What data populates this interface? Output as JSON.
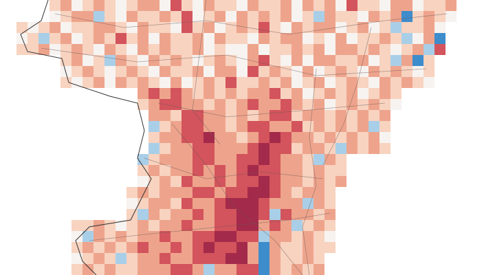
{
  "map": {
    "levels": [
      -2,
      -1,
      0,
      1,
      2,
      3,
      4
    ],
    "colors": [
      "#3d8ccc",
      "#a9cfe8",
      "#f7f3f0",
      "#f8d3c0",
      "#eea48c",
      "#d3545c",
      "#a32a4a"
    ],
    "rows": [
      [
        null,
        null,
        null,
        1,
        2,
        0,
        1,
        2,
        1,
        0,
        1,
        2,
        2,
        0,
        3,
        1,
        0,
        2,
        1,
        1,
        0,
        2,
        1,
        1,
        2,
        0,
        2,
        1,
        2,
        0,
        3,
        1,
        1,
        0,
        2,
        2,
        0,
        1,
        1,
        2
      ],
      [
        null,
        null,
        null,
        0,
        1,
        2,
        2,
        -1,
        1,
        0,
        2,
        1,
        1,
        2,
        1,
        3,
        0,
        1,
        2,
        0,
        2,
        1,
        2,
        1,
        2,
        0,
        1,
        -1,
        2,
        1,
        1,
        0,
        2,
        1,
        2,
        -2,
        1,
        2,
        1,
        0
      ],
      [
        1,
        0,
        1,
        2,
        0,
        1,
        1,
        2,
        2,
        1,
        0,
        2,
        1,
        1,
        0,
        3,
        1,
        2,
        0,
        1,
        2,
        1,
        3,
        1,
        0,
        2,
        1,
        2,
        2,
        0,
        1,
        2,
        0,
        1,
        -1,
        1,
        1,
        2,
        0,
        null
      ],
      [
        0,
        1,
        -1,
        1,
        2,
        0,
        1,
        2,
        1,
        3,
        1,
        2,
        0,
        2,
        1,
        1,
        2,
        0,
        2,
        1,
        1,
        0,
        2,
        1,
        2,
        2,
        0,
        1,
        0,
        2,
        0,
        1,
        1,
        2,
        1,
        -1,
        0,
        2,
        -2,
        null
      ],
      [
        1,
        1,
        2,
        0,
        1,
        2,
        1,
        0,
        2,
        1,
        0,
        2,
        1,
        2,
        1,
        1,
        2,
        0,
        1,
        0,
        0,
        2,
        0,
        1,
        1,
        2,
        1,
        2,
        0,
        2,
        2,
        1,
        2,
        1,
        0,
        1,
        2,
        -1,
        3,
        null
      ],
      [
        null,
        null,
        null,
        null,
        1,
        2,
        0,
        1,
        -1,
        2,
        1,
        0,
        2,
        1,
        2,
        1,
        0,
        1,
        2,
        1,
        0,
        2,
        3,
        1,
        0,
        2,
        0,
        2,
        2,
        1,
        1,
        2,
        0,
        1,
        -1,
        2,
        -2,
        1,
        null,
        null
      ],
      [
        null,
        null,
        null,
        null,
        0,
        1,
        2,
        1,
        0,
        1,
        2,
        1,
        0,
        2,
        1,
        1,
        2,
        0,
        2,
        2,
        0,
        3,
        1,
        2,
        1,
        0,
        2,
        0,
        1,
        2,
        1,
        0,
        2,
        1,
        2,
        1,
        0,
        1,
        null,
        null
      ],
      [
        null,
        null,
        null,
        null,
        1,
        0,
        1,
        2,
        0,
        2,
        1,
        2,
        1,
        0,
        2,
        0,
        1,
        2,
        1,
        3,
        1,
        1,
        2,
        1,
        2,
        0,
        1,
        2,
        0,
        1,
        2,
        1,
        0,
        2,
        1,
        2,
        1,
        0,
        null,
        null
      ],
      [
        null,
        null,
        null,
        null,
        null,
        null,
        null,
        null,
        null,
        null,
        null,
        2,
        3,
        2,
        3,
        2,
        1,
        2,
        1,
        2,
        1,
        2,
        2,
        3,
        1,
        2,
        0,
        1,
        2,
        1,
        2,
        0,
        1,
        2,
        1,
        null,
        null,
        null,
        null,
        null
      ],
      [
        null,
        null,
        null,
        null,
        null,
        null,
        null,
        null,
        null,
        null,
        null,
        1,
        2,
        3,
        3,
        2,
        2,
        1,
        2,
        1,
        2,
        3,
        2,
        2,
        3,
        2,
        1,
        2,
        0,
        1,
        2,
        1,
        2,
        1,
        0,
        null,
        null,
        null,
        null,
        null
      ],
      [
        null,
        null,
        null,
        null,
        null,
        null,
        null,
        null,
        null,
        null,
        null,
        null,
        2,
        2,
        1,
        3,
        3,
        2,
        2,
        1,
        2,
        1,
        2,
        3,
        3,
        1,
        2,
        2,
        1,
        2,
        1,
        2,
        1,
        2,
        null,
        null,
        null,
        null,
        null,
        null
      ],
      [
        null,
        null,
        null,
        null,
        null,
        null,
        null,
        null,
        null,
        null,
        null,
        null,
        -1,
        1,
        2,
        3,
        3,
        2,
        2,
        1,
        2,
        3,
        3,
        2,
        2,
        3,
        1,
        2,
        1,
        2,
        1,
        2,
        -1,
        1,
        null,
        null,
        null,
        null,
        null,
        null
      ],
      [
        null,
        null,
        null,
        null,
        null,
        null,
        null,
        null,
        null,
        null,
        null,
        null,
        1,
        2,
        2,
        3,
        3,
        4,
        2,
        2,
        1,
        2,
        3,
        4,
        3,
        2,
        2,
        1,
        2,
        1,
        2,
        1,
        2,
        0,
        null,
        null,
        null,
        null,
        null,
        null
      ],
      [
        null,
        null,
        null,
        null,
        null,
        null,
        null,
        null,
        null,
        null,
        null,
        null,
        -1,
        1,
        2,
        2,
        3,
        3,
        2,
        2,
        2,
        3,
        4,
        3,
        3,
        1,
        2,
        2,
        1,
        -1,
        2,
        1,
        2,
        1,
        null,
        null,
        null,
        null,
        null,
        null
      ],
      [
        null,
        null,
        null,
        null,
        null,
        null,
        null,
        null,
        null,
        null,
        null,
        -1,
        1,
        2,
        2,
        2,
        3,
        3,
        2,
        2,
        3,
        3,
        4,
        3,
        2,
        2,
        1,
        -1,
        2,
        1,
        null,
        null,
        null,
        null,
        null,
        null,
        null,
        null,
        null,
        null
      ],
      [
        null,
        null,
        null,
        null,
        null,
        null,
        null,
        null,
        null,
        null,
        null,
        1,
        2,
        1,
        2,
        2,
        3,
        2,
        3,
        2,
        3,
        4,
        3,
        3,
        2,
        2,
        1,
        2,
        1,
        1,
        null,
        null,
        null,
        null,
        null,
        null,
        null,
        null,
        null,
        null
      ],
      [
        null,
        null,
        null,
        null,
        null,
        null,
        null,
        null,
        null,
        null,
        null,
        0,
        1,
        2,
        1,
        3,
        2,
        2,
        3,
        2,
        3,
        3,
        4,
        3,
        2,
        2,
        1,
        2,
        1,
        2,
        null,
        null,
        null,
        null,
        null,
        null,
        null,
        null,
        null,
        null
      ],
      [
        null,
        null,
        null,
        null,
        null,
        null,
        null,
        null,
        null,
        null,
        1,
        2,
        1,
        2,
        2,
        2,
        3,
        3,
        2,
        3,
        3,
        4,
        4,
        3,
        2,
        1,
        2,
        2,
        1,
        null,
        null,
        null,
        null,
        null,
        null,
        null,
        null,
        null,
        null,
        null
      ],
      [
        null,
        null,
        null,
        null,
        null,
        null,
        null,
        null,
        null,
        null,
        0,
        1,
        2,
        2,
        1,
        3,
        2,
        2,
        3,
        4,
        4,
        4,
        3,
        2,
        2,
        2,
        -1,
        2,
        1,
        null,
        null,
        null,
        null,
        null,
        null,
        null,
        null,
        null,
        null,
        null
      ],
      [
        null,
        null,
        null,
        null,
        null,
        null,
        null,
        null,
        null,
        null,
        1,
        -1,
        2,
        1,
        2,
        2,
        3,
        2,
        3,
        3,
        4,
        4,
        3,
        -1,
        3,
        2,
        2,
        1,
        2,
        null,
        null,
        null,
        null,
        null,
        null,
        null,
        null,
        null,
        null,
        null
      ],
      [
        null,
        null,
        null,
        null,
        null,
        1,
        1,
        2,
        1,
        0,
        1,
        2,
        1,
        2,
        2,
        3,
        2,
        2,
        3,
        3,
        4,
        4,
        2,
        3,
        2,
        -1,
        1,
        2,
        1,
        null,
        null,
        null,
        null,
        null,
        null,
        null,
        null,
        null,
        null,
        null
      ],
      [
        null,
        null,
        null,
        null,
        null,
        0,
        -1,
        2,
        1,
        2,
        1,
        2,
        2,
        3,
        2,
        2,
        3,
        3,
        4,
        4,
        3,
        3,
        -1,
        2,
        2,
        1,
        2,
        1,
        0,
        null,
        null,
        null,
        null,
        null,
        null,
        null,
        null,
        null,
        null,
        null
      ],
      [
        null,
        null,
        null,
        null,
        null,
        1,
        2,
        1,
        2,
        1,
        2,
        3,
        2,
        2,
        3,
        2,
        3,
        4,
        3,
        3,
        4,
        2,
        -2,
        2,
        1,
        1,
        2,
        1,
        1,
        null,
        null,
        null,
        null,
        null,
        null,
        null,
        null,
        null,
        null,
        null
      ],
      [
        null,
        null,
        null,
        null,
        null,
        0,
        1,
        2,
        1,
        -1,
        1,
        2,
        2,
        3,
        2,
        2,
        3,
        3,
        3,
        4,
        4,
        2,
        -2,
        2,
        1,
        1,
        2,
        1,
        null,
        null,
        null,
        null,
        null,
        null,
        null,
        null,
        null,
        null,
        null,
        null
      ],
      [
        null,
        null,
        null,
        null,
        null,
        1,
        2,
        1,
        2,
        1,
        1,
        2,
        2,
        2,
        3,
        3,
        2,
        -1,
        2,
        2,
        3,
        3,
        -2,
        2,
        1,
        2,
        1,
        2,
        null,
        null,
        null,
        null,
        null,
        null,
        null,
        null,
        null,
        null,
        null,
        null
      ]
    ]
  }
}
